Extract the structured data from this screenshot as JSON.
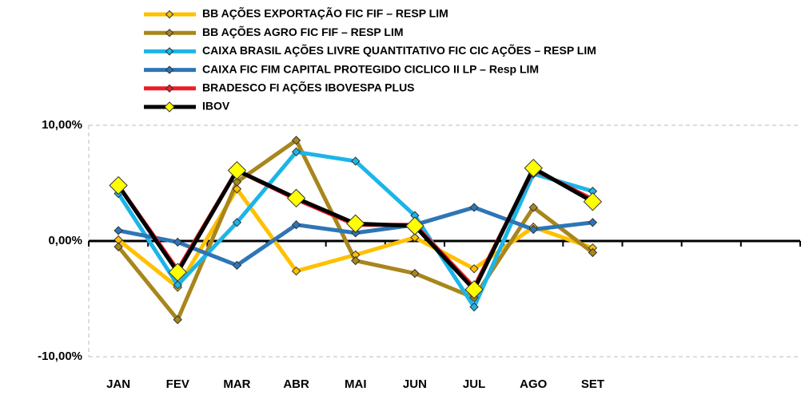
{
  "chart_data": {
    "type": "line",
    "categories": [
      "JAN",
      "FEV",
      "MAR",
      "ABR",
      "MAI",
      "JUN",
      "JUL",
      "AGO",
      "SET",
      null,
      null,
      null
    ],
    "series": [
      {
        "name": "BB AÇÕES EXPORTAÇÃO FIC FIF – RESP LIM",
        "color": "#FFC000",
        "values": [
          0.1,
          -4.0,
          4.5,
          -2.6,
          -1.2,
          0.3,
          -2.4,
          1.2,
          -0.6,
          null,
          null,
          null
        ]
      },
      {
        "name": "BB AÇÕES AGRO FIC FIF – RESP LIM",
        "color": "#A8861C",
        "values": [
          -0.5,
          -6.8,
          5.1,
          8.7,
          -1.7,
          -2.8,
          -4.9,
          2.9,
          -1.0,
          null,
          null,
          null
        ]
      },
      {
        "name": "CAIXA BRASIL AÇÕES LIVRE QUANTITATIVO FIC CIC AÇÕES – RESP LIM",
        "color": "#1CB5E8",
        "values": [
          4.1,
          -3.8,
          1.6,
          7.7,
          6.9,
          2.2,
          -5.7,
          5.8,
          4.3,
          null,
          null,
          null
        ]
      },
      {
        "name": "CAIXA FIC FIM CAPITAL PROTEGIDO CICLICO II LP – Resp LIM",
        "color": "#2E75B6",
        "values": [
          0.9,
          -0.1,
          -2.1,
          1.4,
          0.7,
          1.4,
          2.9,
          1.0,
          1.6,
          null,
          null,
          null
        ]
      },
      {
        "name": "BRADESCO FI AÇÕES IBOVESPA PLUS",
        "color": "#EE1C25",
        "values": [
          4.8,
          -2.5,
          6.1,
          3.6,
          1.4,
          1.4,
          -4.0,
          6.2,
          3.6,
          null,
          null,
          null
        ]
      },
      {
        "name": "IBOV",
        "color": "#000000",
        "marker_color": "#FFFF00",
        "values": [
          4.8,
          -2.7,
          6.1,
          3.7,
          1.5,
          1.3,
          -4.2,
          6.3,
          3.4,
          null,
          null,
          null
        ]
      }
    ],
    "ylim": [
      -10,
      10
    ],
    "yticks": [
      {
        "value": -10,
        "label": "-10,00%"
      },
      {
        "value": 0,
        "label": "0,00%"
      },
      {
        "value": 10,
        "label": "10,00%"
      }
    ],
    "grid": true
  }
}
